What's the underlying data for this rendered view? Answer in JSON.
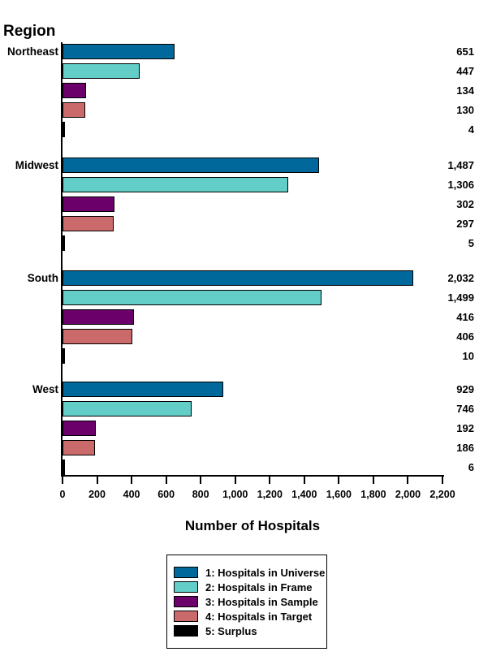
{
  "chart_data": {
    "type": "bar",
    "orientation": "horizontal",
    "group_axis_title": "Region",
    "xlabel": "Number of Hospitals",
    "xlim": [
      0,
      2200
    ],
    "xtick_step": 200,
    "xtick_labels": [
      "0",
      "200",
      "400",
      "600",
      "800",
      "1,000",
      "1,200",
      "1,400",
      "1,600",
      "1,800",
      "2,000",
      "2,200"
    ],
    "grid": false,
    "legend_position": "bottom-center",
    "axis_color": "#000000",
    "text_color": "#000000",
    "categories": [
      "Northeast",
      "Midwest",
      "South",
      "West"
    ],
    "series": [
      {
        "name": "1: Hospitals in Universe",
        "color": "#00689B",
        "values": [
          651,
          1487,
          2032,
          929
        ]
      },
      {
        "name": "2: Hospitals in Frame",
        "color": "#63CDC8",
        "values": [
          447,
          1306,
          1499,
          746
        ]
      },
      {
        "name": "3: Hospitals in Sample",
        "color": "#6B006B",
        "values": [
          134,
          302,
          416,
          192
        ]
      },
      {
        "name": "4: Hospitals in Target",
        "color": "#CA6A6A",
        "values": [
          130,
          297,
          406,
          186
        ]
      },
      {
        "name": "5: Surplus",
        "color": "#000000",
        "values": [
          4,
          5,
          10,
          6
        ]
      }
    ],
    "bar_value_labels": [
      [
        "651",
        "447",
        "134",
        "130",
        "4"
      ],
      [
        "1,487",
        "1,306",
        "302",
        "297",
        "5"
      ],
      [
        "2,032",
        "1,499",
        "416",
        "406",
        "10"
      ],
      [
        "929",
        "746",
        "192",
        "186",
        "6"
      ]
    ]
  }
}
